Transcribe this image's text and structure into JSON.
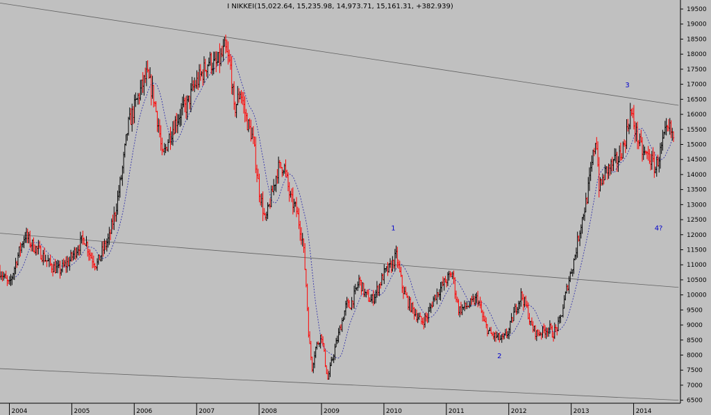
{
  "chart_data": {
    "type": "candlestick",
    "title": "I NIKKEI(15,022.64, 15,235.98, 14,973.71, 15,161.31, +382.939)",
    "x_tick_labels": [
      "2004",
      "2005",
      "2006",
      "2007",
      "2008",
      "2009",
      "2010",
      "2011",
      "2012",
      "2013",
      "2014"
    ],
    "y_tick_labels": [
      6500,
      7000,
      7500,
      8000,
      8500,
      9000,
      9500,
      10000,
      10500,
      11000,
      11500,
      12000,
      12500,
      13000,
      13500,
      14000,
      14500,
      15000,
      15500,
      16000,
      16500,
      17000,
      17500,
      18000,
      18500,
      19000,
      19500
    ],
    "ylim": [
      6400,
      19800
    ],
    "xlim": [
      2003.85,
      2014.75
    ],
    "grid": false,
    "wave_labels": [
      {
        "text": "1",
        "x": 2010.15,
        "y": 12150
      },
      {
        "text": "2",
        "x": 2011.85,
        "y": 7900
      },
      {
        "text": "3",
        "x": 2013.9,
        "y": 16900
      },
      {
        "text": "4?",
        "x": 2014.4,
        "y": 12150
      }
    ],
    "trendlines": [
      {
        "name": "upper",
        "points": [
          [
            2003.85,
            19700
          ],
          [
            2014.72,
            16300
          ]
        ]
      },
      {
        "name": "middle",
        "points": [
          [
            2003.85,
            12050
          ],
          [
            2014.72,
            10250
          ]
        ]
      },
      {
        "name": "lower",
        "points": [
          [
            2003.85,
            7550
          ],
          [
            2014.72,
            6500
          ]
        ]
      }
    ],
    "price_path": [
      [
        2003.85,
        10800
      ],
      [
        2004.0,
        10300
      ],
      [
        2004.12,
        11200
      ],
      [
        2004.25,
        12000
      ],
      [
        2004.35,
        11700
      ],
      [
        2004.5,
        11400
      ],
      [
        2004.65,
        11000
      ],
      [
        2004.8,
        10800
      ],
      [
        2004.95,
        11100
      ],
      [
        2005.1,
        11600
      ],
      [
        2005.2,
        11900
      ],
      [
        2005.3,
        11300
      ],
      [
        2005.4,
        11000
      ],
      [
        2005.5,
        11500
      ],
      [
        2005.6,
        11900
      ],
      [
        2005.7,
        12800
      ],
      [
        2005.8,
        14000
      ],
      [
        2005.9,
        15600
      ],
      [
        2006.0,
        16200
      ],
      [
        2006.1,
        16800
      ],
      [
        2006.2,
        17300
      ],
      [
        2006.3,
        16700
      ],
      [
        2006.4,
        15500
      ],
      [
        2006.45,
        14500
      ],
      [
        2006.55,
        15200
      ],
      [
        2006.65,
        15700
      ],
      [
        2006.75,
        16100
      ],
      [
        2006.85,
        16300
      ],
      [
        2006.95,
        16900
      ],
      [
        2007.1,
        17400
      ],
      [
        2007.2,
        17800
      ],
      [
        2007.3,
        17600
      ],
      [
        2007.4,
        17900
      ],
      [
        2007.45,
        18200
      ],
      [
        2007.55,
        17500
      ],
      [
        2007.6,
        16100
      ],
      [
        2007.7,
        16800
      ],
      [
        2007.8,
        15800
      ],
      [
        2007.9,
        15200
      ],
      [
        2008.0,
        13500
      ],
      [
        2008.05,
        13000
      ],
      [
        2008.1,
        12400
      ],
      [
        2008.2,
        13300
      ],
      [
        2008.3,
        14200
      ],
      [
        2008.4,
        14300
      ],
      [
        2008.5,
        13200
      ],
      [
        2008.6,
        12800
      ],
      [
        2008.7,
        11800
      ],
      [
        2008.75,
        10500
      ],
      [
        2008.8,
        8500
      ],
      [
        2008.85,
        7600
      ],
      [
        2008.9,
        8200
      ],
      [
        2009.0,
        8700
      ],
      [
        2009.05,
        7900
      ],
      [
        2009.1,
        7200
      ],
      [
        2009.2,
        8100
      ],
      [
        2009.3,
        8900
      ],
      [
        2009.4,
        9700
      ],
      [
        2009.45,
        9600
      ],
      [
        2009.55,
        10100
      ],
      [
        2009.6,
        10500
      ],
      [
        2009.7,
        10000
      ],
      [
        2009.8,
        9800
      ],
      [
        2009.9,
        10200
      ],
      [
        2010.0,
        10700
      ],
      [
        2010.1,
        10900
      ],
      [
        2010.2,
        11300
      ],
      [
        2010.3,
        10200
      ],
      [
        2010.4,
        9700
      ],
      [
        2010.5,
        9400
      ],
      [
        2010.6,
        9100
      ],
      [
        2010.7,
        9300
      ],
      [
        2010.8,
        9900
      ],
      [
        2010.9,
        10200
      ],
      [
        2011.0,
        10500
      ],
      [
        2011.1,
        10700
      ],
      [
        2011.15,
        10000
      ],
      [
        2011.2,
        9500
      ],
      [
        2011.3,
        9600
      ],
      [
        2011.4,
        9700
      ],
      [
        2011.5,
        9900
      ],
      [
        2011.6,
        9100
      ],
      [
        2011.7,
        8700
      ],
      [
        2011.8,
        8600
      ],
      [
        2011.9,
        8500
      ],
      [
        2012.0,
        8800
      ],
      [
        2012.1,
        9500
      ],
      [
        2012.2,
        10000
      ],
      [
        2012.3,
        9500
      ],
      [
        2012.35,
        9000
      ],
      [
        2012.45,
        8700
      ],
      [
        2012.55,
        8800
      ],
      [
        2012.65,
        8900
      ],
      [
        2012.7,
        8700
      ],
      [
        2012.8,
        9000
      ],
      [
        2012.85,
        9400
      ],
      [
        2012.95,
        10400
      ],
      [
        2013.05,
        11200
      ],
      [
        2013.15,
        12300
      ],
      [
        2013.25,
        13200
      ],
      [
        2013.35,
        14600
      ],
      [
        2013.4,
        15300
      ],
      [
        2013.45,
        13500
      ],
      [
        2013.55,
        14100
      ],
      [
        2013.65,
        14300
      ],
      [
        2013.75,
        14500
      ],
      [
        2013.85,
        15000
      ],
      [
        2013.95,
        16100
      ],
      [
        2014.05,
        15300
      ],
      [
        2014.15,
        14700
      ],
      [
        2014.25,
        14600
      ],
      [
        2014.35,
        14200
      ],
      [
        2014.45,
        14900
      ],
      [
        2014.5,
        15300
      ],
      [
        2014.58,
        15500
      ],
      [
        2014.65,
        15161
      ]
    ]
  }
}
